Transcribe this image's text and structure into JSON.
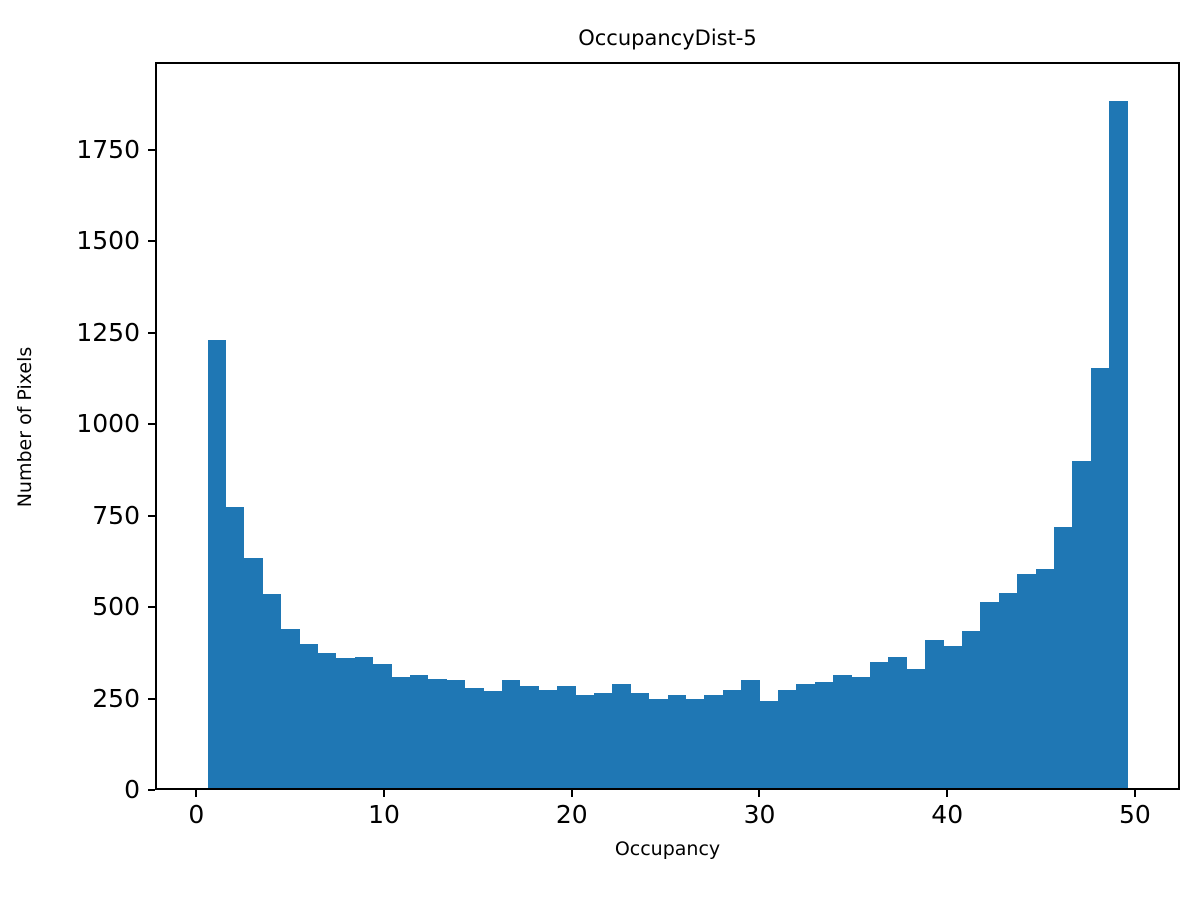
{
  "chart_data": {
    "type": "bar",
    "subtype": "histogram",
    "title": "OccupancyDist-5",
    "xlabel": "Occupancy",
    "ylabel": "Number of Pixels",
    "bar_color": "#1f77b4",
    "grid": false,
    "legend": "none",
    "x_start": 0.5,
    "bin_width": 0.98,
    "values": [
      1235,
      780,
      640,
      540,
      445,
      405,
      380,
      365,
      370,
      350,
      315,
      320,
      310,
      305,
      285,
      275,
      305,
      290,
      280,
      290,
      265,
      270,
      295,
      270,
      255,
      265,
      255,
      265,
      280,
      305,
      250,
      280,
      295,
      300,
      320,
      315,
      355,
      370,
      335,
      415,
      400,
      440,
      520,
      545,
      595,
      610,
      725,
      905,
      1160,
      1890
    ],
    "xlim": [
      -2.2,
      52.4
    ],
    "ylim": [
      0,
      1990
    ],
    "xticks": [
      0,
      10,
      20,
      30,
      40,
      50
    ],
    "yticks": [
      0,
      250,
      500,
      750,
      1000,
      1250,
      1500,
      1750
    ]
  }
}
